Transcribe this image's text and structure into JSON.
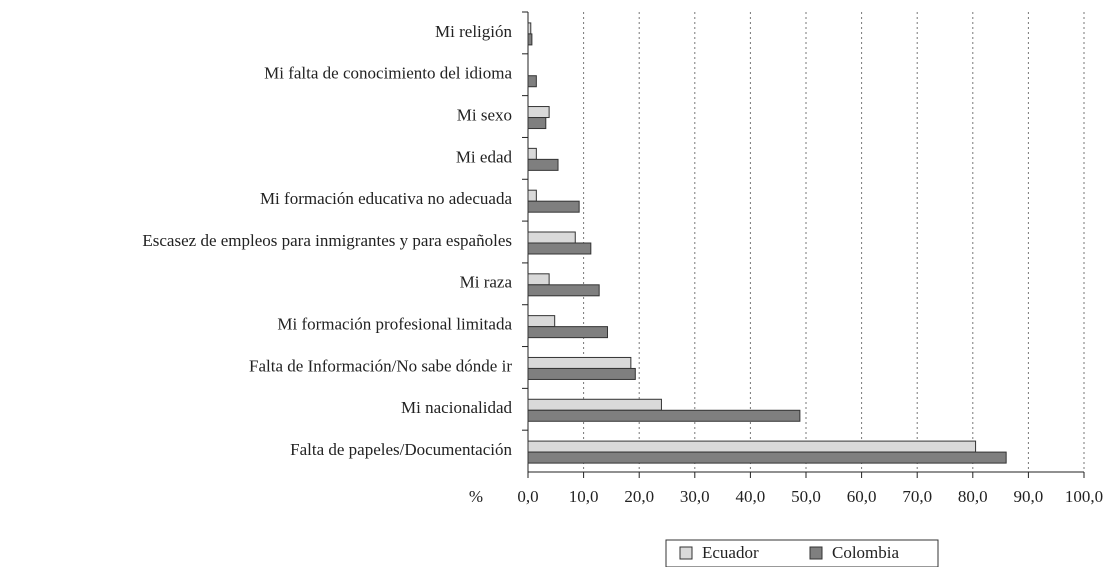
{
  "chart_data": {
    "type": "bar",
    "orientation": "horizontal",
    "categories": [
      "Mi religión",
      "Mi falta de conocimiento del idioma",
      "Mi sexo",
      "Mi edad",
      "Mi formación educativa no adecuada",
      "Escasez de empleos para inmigrantes y para españoles",
      "Mi raza",
      "Mi formación profesional limitada",
      "Falta de Información/No sabe dónde ir",
      "Mi nacionalidad",
      "Falta de papeles/Documentación"
    ],
    "series": [
      {
        "name": "Ecuador",
        "color": "#d9d9d9",
        "values": [
          0.5,
          0,
          3.8,
          1.5,
          1.5,
          8.5,
          3.8,
          4.8,
          18.5,
          24.0,
          80.5
        ]
      },
      {
        "name": "Colombia",
        "color": "#7f7f7f",
        "values": [
          0.7,
          1.5,
          3.2,
          5.4,
          9.2,
          11.3,
          12.8,
          14.3,
          19.3,
          48.9,
          86.0
        ]
      }
    ],
    "x_label": "%",
    "xlim": [
      0,
      100
    ],
    "xticks": [
      {
        "value": 0,
        "label": "0,0"
      },
      {
        "value": 10,
        "label": "10,0"
      },
      {
        "value": 20,
        "label": "20,0"
      },
      {
        "value": 30,
        "label": "30,0"
      },
      {
        "value": 40,
        "label": "40,0"
      },
      {
        "value": 50,
        "label": "50,0"
      },
      {
        "value": 60,
        "label": "60,0"
      },
      {
        "value": 70,
        "label": "70,0"
      },
      {
        "value": 80,
        "label": "80,0"
      },
      {
        "value": 90,
        "label": "90,0"
      },
      {
        "value": 100,
        "label": "100,0"
      }
    ],
    "grid": true,
    "legend": "bottom"
  }
}
